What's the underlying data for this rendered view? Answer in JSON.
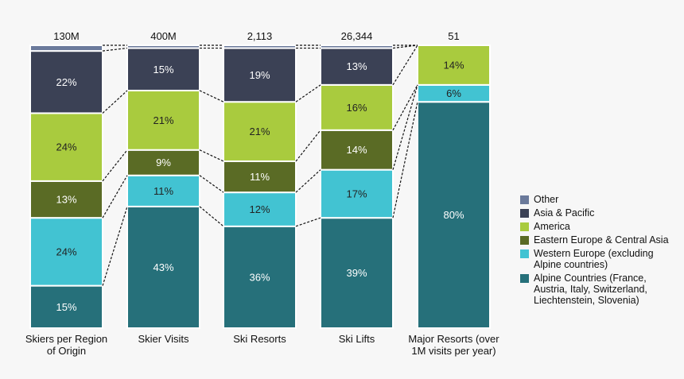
{
  "chart_data": {
    "type": "bar",
    "stacked": "percent",
    "categories": [
      [
        "Skiers per Region",
        "of Origin"
      ],
      [
        "Skier Visits"
      ],
      [
        "Ski Resorts"
      ],
      [
        "Ski Lifts"
      ],
      [
        "Major Resorts (over",
        "1M visits per year)"
      ]
    ],
    "totals": [
      "130M",
      "400M",
      "2,113",
      "26,344",
      "51"
    ],
    "series": [
      {
        "name": "Alpine Countries (France, Austria, Italy, Switzerland, Liechtenstein, Slovenia)",
        "color": "#26707a",
        "text_color": "#ffffff",
        "values": [
          15,
          43,
          36,
          39,
          80
        ]
      },
      {
        "name": "Western Europe (excluding Alpine countries)",
        "color": "#42c3d2",
        "text_color": "#222222",
        "values": [
          24,
          11,
          12,
          17,
          6
        ]
      },
      {
        "name": "Eastern Europe & Central Asia",
        "color": "#5a6b25",
        "text_color": "#ffffff",
        "values": [
          13,
          9,
          11,
          14,
          0
        ]
      },
      {
        "name": "America",
        "color": "#a9cb3e",
        "text_color": "#222222",
        "values": [
          24,
          21,
          21,
          16,
          14
        ]
      },
      {
        "name": "Asia & Pacific",
        "color": "#3b4155",
        "text_color": "#ffffff",
        "values": [
          22,
          15,
          19,
          13,
          0
        ]
      },
      {
        "name": "Other",
        "color": "#6b7a9b",
        "text_color": "#ffffff",
        "values": [
          2,
          1,
          1,
          1,
          0
        ],
        "labels_shown": false
      }
    ],
    "ylim": [
      0,
      100
    ],
    "connectors": "dashed",
    "legend_position": "right",
    "legend_order": [
      "Other",
      "Asia & Pacific",
      "America",
      "Eastern Europe & Central Asia",
      "Western Europe (excluding Alpine countries)",
      "Alpine Countries (France, Austria, Italy, Switzerland, Liechtenstein, Slovenia)"
    ]
  }
}
